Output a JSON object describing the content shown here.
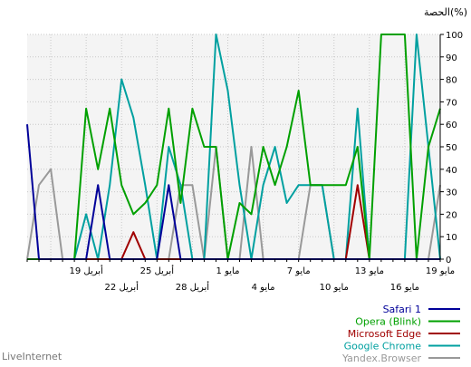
{
  "chart_data": {
    "type": "line",
    "ylabel": "الحصة(%)",
    "ylim": [
      0,
      100
    ],
    "yticks": [
      0,
      10,
      20,
      30,
      40,
      50,
      60,
      70,
      80,
      90,
      100
    ],
    "grid": true,
    "legend_position": "bottom-right",
    "x_count": 36,
    "x_labels_row1": [
      {
        "label": "19 مايو",
        "index": 0
      },
      {
        "label": "13 مايو",
        "index": 6
      },
      {
        "label": "7 مايو",
        "index": 12
      },
      {
        "label": "1 مايو",
        "index": 18
      },
      {
        "label": "25 أبريل",
        "index": 24
      },
      {
        "label": "19 أبريل",
        "index": 30
      }
    ],
    "x_labels_row2": [
      {
        "label": "16 مايو",
        "index": 3
      },
      {
        "label": "10 مايو",
        "index": 9
      },
      {
        "label": "4 مايو",
        "index": 15
      },
      {
        "label": "28 أبريل",
        "index": 21
      },
      {
        "label": "22 أبريل",
        "index": 27
      }
    ],
    "series": [
      {
        "name": "Yandex.Browser",
        "color": "#999999",
        "values": [
          33,
          0,
          0,
          0,
          0,
          0,
          0,
          0,
          0,
          0,
          33,
          33,
          0,
          0,
          0,
          0,
          50,
          0,
          0,
          50,
          0,
          33,
          33,
          0,
          0,
          0,
          0,
          0,
          0,
          0,
          0,
          0,
          0,
          40,
          33,
          0
        ]
      },
      {
        "name": "Google Chrome",
        "color": "#00a0a0",
        "values": [
          0,
          50,
          100,
          0,
          0,
          0,
          0,
          67,
          0,
          0,
          33,
          33,
          33,
          25,
          50,
          33,
          0,
          33,
          75,
          100,
          0,
          0,
          33,
          50,
          0,
          33,
          63,
          80,
          33,
          0,
          20,
          0,
          0,
          0,
          0,
          0
        ]
      },
      {
        "name": "Microsoft Edge",
        "color": "#a00000",
        "values": [
          0,
          0,
          0,
          0,
          0,
          0,
          0,
          33,
          0,
          0,
          0,
          0,
          0,
          0,
          0,
          0,
          0,
          0,
          0,
          0,
          0,
          0,
          0,
          0,
          0,
          0,
          12,
          0,
          0,
          0,
          0,
          0,
          0,
          0,
          0,
          0
        ]
      },
      {
        "name": "Opera (Blink)",
        "color": "#00a000",
        "values": [
          67,
          50,
          0,
          100,
          100,
          100,
          0,
          50,
          33,
          33,
          33,
          33,
          75,
          50,
          33,
          50,
          20,
          25,
          0,
          50,
          50,
          67,
          25,
          67,
          33,
          25,
          20,
          33,
          67,
          40,
          67,
          0,
          0,
          0,
          0,
          0
        ]
      },
      {
        "name": "Safari 1",
        "color": "#000099",
        "values": [
          0,
          0,
          0,
          0,
          0,
          0,
          0,
          0,
          0,
          0,
          0,
          0,
          0,
          0,
          0,
          0,
          0,
          0,
          0,
          0,
          0,
          0,
          0,
          33,
          0,
          0,
          0,
          0,
          0,
          33,
          0,
          0,
          0,
          0,
          0,
          60
        ]
      }
    ],
    "legend": [
      "Safari 1",
      "Opera (Blink)",
      "Microsoft Edge",
      "Google Chrome",
      "Yandex.Browser"
    ]
  },
  "footer": "LiveInternet"
}
